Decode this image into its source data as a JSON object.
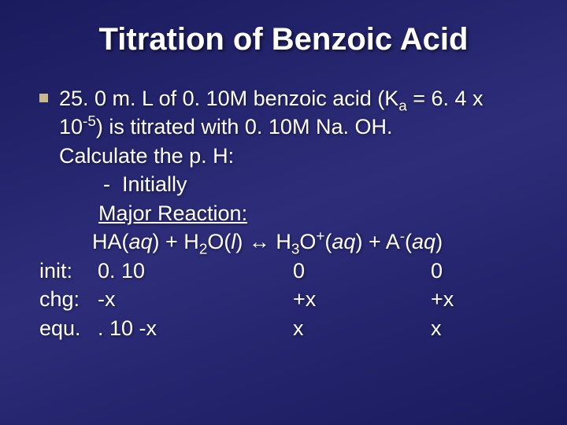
{
  "title": "Titration of Benzoic Acid",
  "problem": {
    "line1_pre": "25. 0 m. L of 0. 10M benzoic acid (K",
    "line1_sub": "a",
    "line1_post": " = 6. 4 x",
    "line2_pre": "10",
    "line2_sup": "-5",
    "line2_post": ") is titrated with 0. 10M Na. OH.",
    "line3": "Calculate the p. H:",
    "bullet_dash": "-",
    "bullet_text": "Initially",
    "major_reaction_label": "Major Reaction:"
  },
  "reaction": {
    "r1": "HA(",
    "r1_state": "aq",
    "r1_close": ") + H",
    "r2_sub": "2",
    "r2_mid": "O(",
    "r2_state": "l",
    "r2_close": ") ↔ H",
    "r3_sub": "3",
    "r3_mid": "O",
    "r3_sup": "+",
    "r3_open": "(",
    "r3_state": "aq",
    "r3_close": ") + A",
    "r4_sup": "-",
    "r4_open": "(",
    "r4_state": "aq",
    "r4_close": ")"
  },
  "ice": {
    "init_label": "init:",
    "init_c1": "0. 10",
    "init_c2": "0",
    "init_c3": "0",
    "chg_label": "chg:",
    "chg_c1": "-x",
    "chg_c2": "+x",
    "chg_c3": "+x",
    "equ_label": "equ.",
    "equ_c1": ". 10 -x",
    "equ_c2": "x",
    "equ_c3": "x"
  },
  "colors": {
    "background_start": "#1a1a5e",
    "background_end": "#2d2d7a",
    "text": "#ffffff",
    "bullet": "#c8b890"
  },
  "typography": {
    "title_fontsize": 40,
    "body_fontsize": 27,
    "font_family": "Arial"
  }
}
